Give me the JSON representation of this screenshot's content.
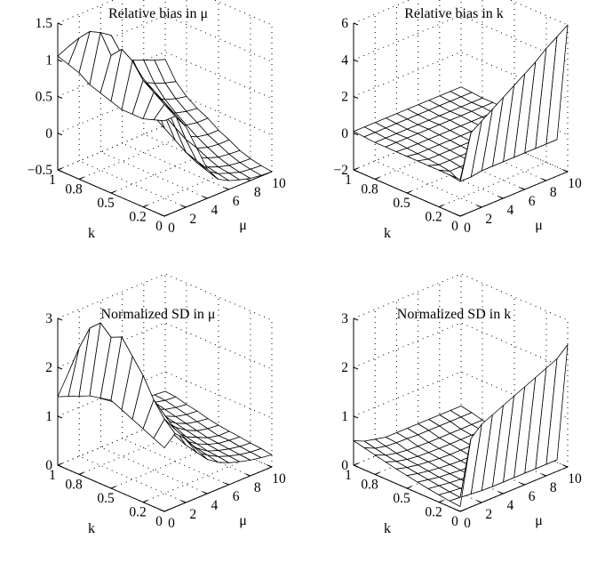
{
  "chart_data": [
    {
      "type": "surface",
      "title": "Relative bias in μ",
      "xlabel": "μ",
      "ylabel": "k",
      "x_ticks": [
        "0",
        "2",
        "4",
        "6",
        "8",
        "10"
      ],
      "y_ticks": [
        "1",
        "0.8",
        "0.5",
        "0.2",
        "0"
      ],
      "z_ticks": [
        "−0.5",
        "0",
        "0.5",
        "1",
        "1.5"
      ],
      "xlim": [
        0,
        10
      ],
      "ylim": [
        1,
        0
      ],
      "zlim": [
        -0.5,
        1.5
      ],
      "grid": true,
      "x": [
        0,
        1,
        2,
        3,
        4,
        5,
        6,
        7,
        8,
        9,
        10
      ],
      "y": [
        1.0,
        0.9,
        0.8,
        0.7,
        0.6,
        0.5,
        0.4,
        0.3,
        0.2,
        0.1,
        0.0
      ],
      "z": [
        [
          1.05,
          1.12,
          1.0,
          0.9,
          0.8,
          0.72,
          0.64,
          0.57,
          0.51,
          0.45,
          0.4
        ],
        [
          1.0,
          1.3,
          1.2,
          1.0,
          0.7,
          0.55,
          0.42,
          0.33,
          0.26,
          0.2,
          0.16
        ],
        [
          0.95,
          1.45,
          1.35,
          1.05,
          0.6,
          0.4,
          0.28,
          0.18,
          0.1,
          0.05,
          0.02
        ],
        [
          0.85,
          1.5,
          1.4,
          0.95,
          0.5,
          0.3,
          0.15,
          0.05,
          -0.02,
          -0.06,
          -0.08
        ],
        [
          0.8,
          1.25,
          1.2,
          0.8,
          0.4,
          0.2,
          0.05,
          -0.05,
          -0.12,
          -0.15,
          -0.15
        ],
        [
          0.75,
          1.4,
          1.1,
          0.7,
          0.3,
          0.1,
          -0.05,
          -0.15,
          -0.22,
          -0.25,
          -0.25
        ],
        [
          0.7,
          1.3,
          1.0,
          0.6,
          0.2,
          0.0,
          -0.15,
          -0.25,
          -0.3,
          -0.32,
          -0.32
        ],
        [
          0.7,
          1.1,
          0.9,
          0.5,
          0.1,
          -0.1,
          -0.25,
          -0.32,
          -0.37,
          -0.39,
          -0.4
        ],
        [
          0.7,
          1.0,
          0.8,
          0.4,
          0.0,
          -0.2,
          -0.32,
          -0.38,
          -0.42,
          -0.44,
          -0.45
        ],
        [
          0.75,
          0.9,
          0.7,
          0.3,
          -0.05,
          -0.25,
          -0.35,
          -0.4,
          -0.45,
          -0.47,
          -0.48
        ],
        [
          0.8,
          0.8,
          0.6,
          0.25,
          -0.1,
          -0.3,
          -0.38,
          -0.43,
          -0.47,
          -0.49,
          -0.5
        ]
      ]
    },
    {
      "type": "surface",
      "title": "Relative bias in k",
      "xlabel": "μ",
      "ylabel": "k",
      "x_ticks": [
        "0",
        "2",
        "4",
        "6",
        "8",
        "10"
      ],
      "y_ticks": [
        "1",
        "0.8",
        "0.5",
        "0.2",
        "0"
      ],
      "z_ticks": [
        "−2",
        "0",
        "2",
        "4",
        "6"
      ],
      "xlim": [
        0,
        10
      ],
      "ylim": [
        1,
        0
      ],
      "zlim": [
        -2,
        6
      ],
      "grid": true,
      "x": [
        0,
        1,
        2,
        3,
        4,
        5,
        6,
        7,
        8,
        9,
        10
      ],
      "y": [
        1.0,
        0.9,
        0.8,
        0.7,
        0.6,
        0.5,
        0.4,
        0.3,
        0.2,
        0.1,
        0.0
      ],
      "z": [
        [
          0.1,
          0.1,
          0.1,
          0.1,
          0.1,
          0.1,
          0.1,
          0.1,
          0.1,
          0.1,
          0.1
        ],
        [
          0.05,
          0.05,
          0.05,
          0.05,
          0.05,
          0.05,
          0.05,
          0.05,
          0.05,
          0.05,
          0.05
        ],
        [
          0.0,
          0.0,
          0.0,
          0.0,
          0.0,
          0.0,
          0.0,
          0.0,
          0.0,
          0.0,
          0.0
        ],
        [
          0.0,
          0.0,
          0.0,
          0.0,
          0.0,
          0.0,
          0.0,
          0.0,
          0.0,
          0.0,
          0.0
        ],
        [
          0.0,
          -0.05,
          -0.05,
          -0.05,
          -0.05,
          -0.05,
          -0.05,
          -0.05,
          -0.05,
          -0.05,
          -0.05
        ],
        [
          0.0,
          -0.1,
          -0.1,
          -0.1,
          -0.1,
          -0.1,
          -0.1,
          -0.1,
          -0.1,
          -0.1,
          -0.1
        ],
        [
          0.0,
          -0.15,
          -0.15,
          -0.15,
          -0.15,
          -0.15,
          -0.15,
          -0.15,
          -0.15,
          -0.15,
          -0.15
        ],
        [
          0.0,
          -0.2,
          -0.2,
          -0.2,
          -0.2,
          -0.2,
          -0.2,
          -0.2,
          -0.2,
          -0.2,
          -0.2
        ],
        [
          0.0,
          -0.3,
          -0.3,
          -0.3,
          -0.3,
          -0.3,
          -0.3,
          -0.3,
          -0.3,
          -0.3,
          -0.3
        ],
        [
          0.0,
          -0.6,
          -0.6,
          -0.5,
          -0.5,
          -0.5,
          -0.5,
          -0.5,
          -0.5,
          -0.5,
          -0.5
        ],
        [
          0.0,
          2.3,
          2.7,
          3.1,
          3.5,
          3.9,
          4.3,
          4.7,
          5.2,
          5.6,
          6.0
        ]
      ]
    },
    {
      "type": "surface",
      "title": "Normalized SD in μ",
      "xlabel": "μ",
      "ylabel": "k",
      "x_ticks": [
        "0",
        "2",
        "4",
        "6",
        "8",
        "10"
      ],
      "y_ticks": [
        "1",
        "0.8",
        "0.5",
        "0.2",
        "0"
      ],
      "z_ticks": [
        "0",
        "1",
        "2",
        "3"
      ],
      "xlim": [
        0,
        10
      ],
      "ylim": [
        1,
        0
      ],
      "zlim": [
        0,
        3
      ],
      "grid": true,
      "x": [
        0,
        1,
        2,
        3,
        4,
        5,
        6,
        7,
        8,
        9,
        10
      ],
      "y": [
        1.0,
        0.9,
        0.8,
        0.7,
        0.6,
        0.5,
        0.4,
        0.3,
        0.2,
        0.1,
        0.0
      ],
      "z": [
        [
          1.4,
          1.8,
          1.5,
          1.2,
          1.0,
          0.85,
          0.75,
          0.7,
          0.65,
          0.62,
          0.6
        ],
        [
          1.5,
          2.4,
          2.0,
          1.5,
          1.2,
          0.9,
          0.8,
          0.7,
          0.65,
          0.6,
          0.58
        ],
        [
          1.6,
          2.9,
          2.3,
          1.7,
          1.3,
          1.0,
          0.8,
          0.7,
          0.6,
          0.55,
          0.52
        ],
        [
          1.7,
          3.1,
          2.4,
          1.8,
          1.3,
          1.0,
          0.8,
          0.65,
          0.55,
          0.5,
          0.48
        ],
        [
          1.75,
          2.9,
          2.3,
          1.7,
          1.2,
          0.95,
          0.75,
          0.6,
          0.5,
          0.45,
          0.42
        ],
        [
          1.8,
          3.0,
          2.2,
          1.6,
          1.1,
          0.9,
          0.7,
          0.55,
          0.45,
          0.4,
          0.38
        ],
        [
          1.7,
          2.7,
          2.0,
          1.5,
          1.0,
          0.8,
          0.6,
          0.5,
          0.4,
          0.35,
          0.35
        ],
        [
          1.6,
          2.4,
          1.8,
          1.3,
          0.9,
          0.7,
          0.55,
          0.45,
          0.38,
          0.35,
          0.33
        ],
        [
          1.5,
          2.0,
          1.6,
          1.2,
          0.8,
          0.65,
          0.5,
          0.42,
          0.36,
          0.32,
          0.3
        ],
        [
          1.4,
          1.7,
          1.4,
          1.1,
          0.75,
          0.6,
          0.48,
          0.4,
          0.34,
          0.3,
          0.28
        ],
        [
          1.3,
          1.5,
          1.3,
          1.0,
          0.7,
          0.55,
          0.45,
          0.38,
          0.32,
          0.28,
          0.25
        ]
      ]
    },
    {
      "type": "surface",
      "title": "Normalized SD in k",
      "xlabel": "μ",
      "ylabel": "k",
      "x_ticks": [
        "0",
        "2",
        "4",
        "6",
        "8",
        "10"
      ],
      "y_ticks": [
        "1",
        "0.8",
        "0.5",
        "0.2",
        "0"
      ],
      "z_ticks": [
        "0",
        "1",
        "2",
        "3"
      ],
      "xlim": [
        0,
        10
      ],
      "ylim": [
        1,
        0
      ],
      "zlim": [
        0,
        3
      ],
      "grid": true,
      "x": [
        0,
        1,
        2,
        3,
        4,
        5,
        6,
        7,
        8,
        9,
        10
      ],
      "y": [
        1.0,
        0.9,
        0.8,
        0.7,
        0.6,
        0.5,
        0.4,
        0.3,
        0.2,
        0.1,
        0.0
      ],
      "z": [
        [
          0.5,
          0.4,
          0.35,
          0.3,
          0.3,
          0.3,
          0.3,
          0.3,
          0.3,
          0.3,
          0.3
        ],
        [
          0.45,
          0.35,
          0.3,
          0.28,
          0.27,
          0.26,
          0.26,
          0.26,
          0.26,
          0.26,
          0.26
        ],
        [
          0.4,
          0.3,
          0.25,
          0.22,
          0.21,
          0.2,
          0.2,
          0.2,
          0.2,
          0.2,
          0.2
        ],
        [
          0.35,
          0.27,
          0.22,
          0.19,
          0.18,
          0.17,
          0.17,
          0.17,
          0.17,
          0.17,
          0.17
        ],
        [
          0.3,
          0.24,
          0.2,
          0.17,
          0.15,
          0.14,
          0.14,
          0.14,
          0.14,
          0.14,
          0.14
        ],
        [
          0.26,
          0.21,
          0.17,
          0.14,
          0.12,
          0.11,
          0.11,
          0.11,
          0.11,
          0.11,
          0.11
        ],
        [
          0.22,
          0.18,
          0.14,
          0.12,
          0.1,
          0.09,
          0.09,
          0.09,
          0.09,
          0.09,
          0.09
        ],
        [
          0.18,
          0.15,
          0.12,
          0.1,
          0.08,
          0.07,
          0.07,
          0.07,
          0.07,
          0.07,
          0.07
        ],
        [
          0.15,
          0.12,
          0.1,
          0.08,
          0.07,
          0.06,
          0.06,
          0.06,
          0.06,
          0.06,
          0.06
        ],
        [
          0.12,
          0.1,
          0.08,
          0.06,
          0.05,
          0.05,
          0.05,
          0.05,
          0.05,
          0.05,
          0.05
        ],
        [
          0.1,
          1.4,
          1.6,
          1.7,
          1.8,
          1.9,
          2.0,
          2.1,
          2.2,
          2.3,
          2.5
        ]
      ]
    }
  ]
}
